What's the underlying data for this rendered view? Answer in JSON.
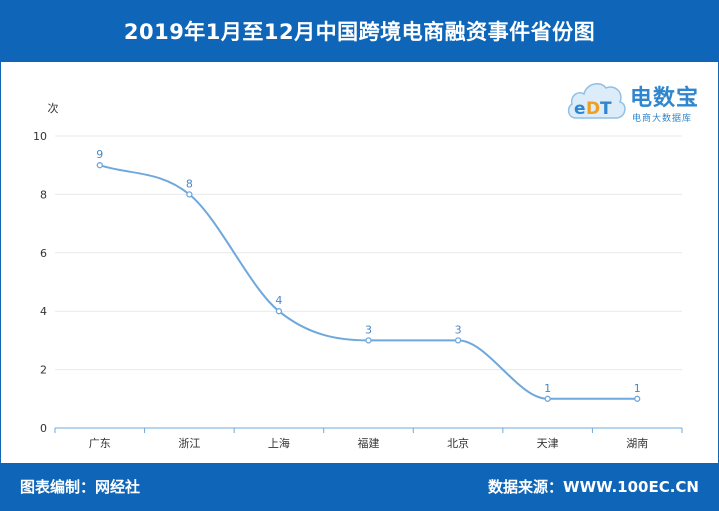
{
  "header": {
    "title": "2019年1月至12月中国跨境电商融资事件省份图"
  },
  "footer": {
    "left_text": "图表编制：网经社",
    "right_text": "数据来源：WWW.100EC.CN"
  },
  "logo": {
    "brand_text": "电数宝",
    "sub_text": "电商大数据库",
    "mark_text": "eDT"
  },
  "colors": {
    "header_bg": "#0f66b8",
    "line": "#6fa8dc",
    "label": "#4a86c5",
    "axis_text": "#333333",
    "grid": "#e8e8e8",
    "axis_line": "#6fa8dc"
  },
  "chart_data": {
    "type": "line",
    "categories": [
      "广东",
      "浙江",
      "上海",
      "福建",
      "北京",
      "天津",
      "湖南"
    ],
    "series": [
      {
        "values": [
          9,
          8,
          4,
          3,
          3,
          1,
          1
        ]
      }
    ],
    "ylabel": "次",
    "ylim": [
      0,
      10
    ],
    "yticks": [
      0,
      2,
      4,
      6,
      8,
      10
    ],
    "grid": true,
    "smooth": true,
    "data_labels": true,
    "legend": "none"
  }
}
